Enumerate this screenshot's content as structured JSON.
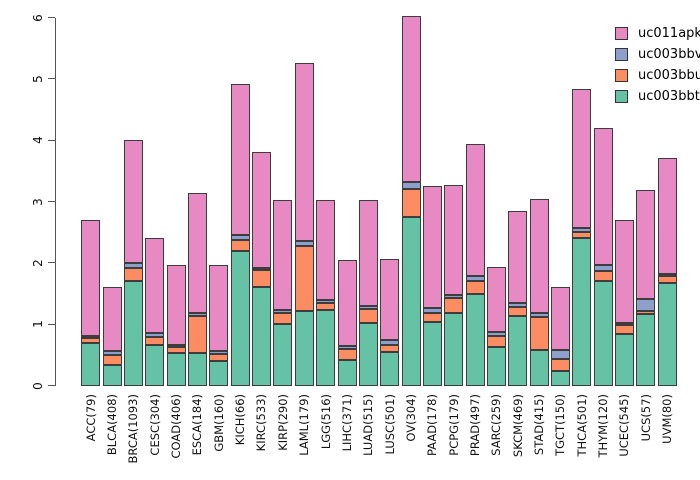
{
  "chart_data": {
    "type": "bar",
    "stacked": true,
    "title": "",
    "xlabel": "",
    "ylabel": "",
    "ylim": [
      0,
      6
    ],
    "yticks": [
      "0",
      "1",
      "2",
      "3",
      "4",
      "5",
      "6"
    ],
    "grid": false,
    "legend_position": "top-right",
    "legend_order": [
      "uc011apk",
      "uc003bbv",
      "uc003bbu",
      "uc003bbt"
    ],
    "categories": [
      "ACC(79)",
      "BLCA(408)",
      "BRCA(1093)",
      "CESC(304)",
      "COAD(406)",
      "ESCA(184)",
      "GBM(160)",
      "KICH(66)",
      "KIRC(533)",
      "KIRP(290)",
      "LAML(179)",
      "LGG(516)",
      "LIHC(371)",
      "LUAD(515)",
      "LUSC(501)",
      "OV(304)",
      "PAAD(178)",
      "PCPG(179)",
      "PRAD(497)",
      "SARC(259)",
      "SKCM(469)",
      "STAD(415)",
      "TGCT(150)",
      "THCA(501)",
      "THYM(120)",
      "UCEC(545)",
      "UCS(57)",
      "UVM(80)"
    ],
    "series": [
      {
        "name": "uc003bbt",
        "color": "#66C2A5",
        "values": [
          0.7,
          0.34,
          1.71,
          0.66,
          0.53,
          0.53,
          0.4,
          2.19,
          1.6,
          1.0,
          1.22,
          1.23,
          0.42,
          1.02,
          0.54,
          2.74,
          1.03,
          1.18,
          1.49,
          0.62,
          1.13,
          0.58,
          0.24,
          2.41,
          1.7,
          0.84,
          1.17,
          1.67
        ]
      },
      {
        "name": "uc003bbu",
        "color": "#FC8D62",
        "values": [
          0.08,
          0.15,
          0.21,
          0.13,
          0.09,
          0.6,
          0.12,
          0.19,
          0.28,
          0.19,
          1.06,
          0.11,
          0.17,
          0.22,
          0.12,
          0.47,
          0.16,
          0.24,
          0.21,
          0.18,
          0.15,
          0.53,
          0.19,
          0.09,
          0.16,
          0.14,
          0.05,
          0.11
        ]
      },
      {
        "name": "uc003bbv",
        "color": "#8DA0CB",
        "values": [
          0.02,
          0.07,
          0.07,
          0.06,
          0.04,
          0.06,
          0.04,
          0.07,
          0.04,
          0.04,
          0.07,
          0.06,
          0.05,
          0.05,
          0.08,
          0.11,
          0.07,
          0.05,
          0.08,
          0.07,
          0.06,
          0.08,
          0.15,
          0.07,
          0.1,
          0.03,
          0.19,
          0.04
        ]
      },
      {
        "name": "uc011apk",
        "color": "#E78AC3",
        "values": [
          1.9,
          1.04,
          2.02,
          1.56,
          1.31,
          1.95,
          1.4,
          2.46,
          1.89,
          1.8,
          2.91,
          1.63,
          1.41,
          1.74,
          1.32,
          2.71,
          1.99,
          1.8,
          2.16,
          1.06,
          1.5,
          1.85,
          1.02,
          2.26,
          2.24,
          1.69,
          1.78,
          1.89
        ]
      }
    ],
    "totals": [
      2.7,
      1.6,
      4.01,
      2.41,
      1.97,
      3.14,
      1.96,
      4.91,
      3.81,
      3.03,
      5.26,
      3.03,
      2.05,
      3.03,
      2.06,
      6.03,
      3.25,
      3.27,
      3.94,
      1.93,
      2.84,
      3.04,
      1.6,
      4.83,
      4.2,
      2.7,
      3.19,
      3.71
    ]
  }
}
